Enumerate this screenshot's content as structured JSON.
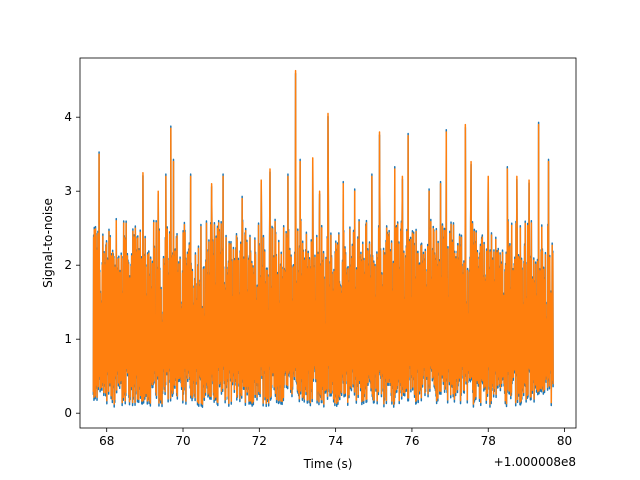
{
  "chart_data": {
    "type": "line",
    "title": "",
    "xlabel": "Time (s)",
    "ylabel": "Signal-to-noise",
    "x_offset_label": "+1.000008e8",
    "xlim": [
      67.3,
      80.3
    ],
    "ylim": [
      -0.2,
      4.8
    ],
    "x_ticks": [
      68,
      70,
      72,
      74,
      76,
      78,
      80
    ],
    "x_tick_labels": [
      "68",
      "70",
      "72",
      "74",
      "76",
      "78",
      "80"
    ],
    "y_ticks": [
      0,
      1,
      2,
      3,
      4
    ],
    "y_tick_labels": [
      "0",
      "1",
      "2",
      "3",
      "4"
    ],
    "grid": false,
    "legend": "none",
    "x_range": [
      67.65,
      79.7
    ],
    "series": [
      {
        "color": "#1f77b4"
      },
      {
        "color": "#ff7f0e"
      }
    ],
    "peaks": [
      {
        "x": 67.72,
        "y": 2.4
      },
      {
        "x": 67.8,
        "y": 3.5
      },
      {
        "x": 68.25,
        "y": 2.6
      },
      {
        "x": 68.75,
        "y": 2.5
      },
      {
        "x": 68.95,
        "y": 3.25
      },
      {
        "x": 69.35,
        "y": 3.0
      },
      {
        "x": 69.55,
        "y": 3.2
      },
      {
        "x": 69.68,
        "y": 3.85
      },
      {
        "x": 69.75,
        "y": 3.4
      },
      {
        "x": 70.2,
        "y": 3.2
      },
      {
        "x": 70.75,
        "y": 3.1
      },
      {
        "x": 71.05,
        "y": 3.2
      },
      {
        "x": 71.55,
        "y": 2.9
      },
      {
        "x": 72.05,
        "y": 3.15
      },
      {
        "x": 72.28,
        "y": 3.3
      },
      {
        "x": 72.75,
        "y": 3.2
      },
      {
        "x": 72.95,
        "y": 4.63
      },
      {
        "x": 73.07,
        "y": 3.4
      },
      {
        "x": 73.4,
        "y": 3.45
      },
      {
        "x": 73.58,
        "y": 3.0
      },
      {
        "x": 73.8,
        "y": 4.05
      },
      {
        "x": 74.2,
        "y": 3.1
      },
      {
        "x": 74.5,
        "y": 3.0
      },
      {
        "x": 74.95,
        "y": 3.2
      },
      {
        "x": 75.15,
        "y": 3.8
      },
      {
        "x": 75.55,
        "y": 3.3
      },
      {
        "x": 75.75,
        "y": 3.2
      },
      {
        "x": 75.9,
        "y": 3.75
      },
      {
        "x": 76.45,
        "y": 3.0
      },
      {
        "x": 76.75,
        "y": 3.1
      },
      {
        "x": 76.9,
        "y": 3.8
      },
      {
        "x": 77.4,
        "y": 3.9
      },
      {
        "x": 77.55,
        "y": 3.4
      },
      {
        "x": 78.0,
        "y": 3.2
      },
      {
        "x": 78.5,
        "y": 3.3
      },
      {
        "x": 78.75,
        "y": 3.2
      },
      {
        "x": 79.07,
        "y": 3.15
      },
      {
        "x": 79.32,
        "y": 3.9
      },
      {
        "x": 79.58,
        "y": 3.4
      }
    ]
  }
}
